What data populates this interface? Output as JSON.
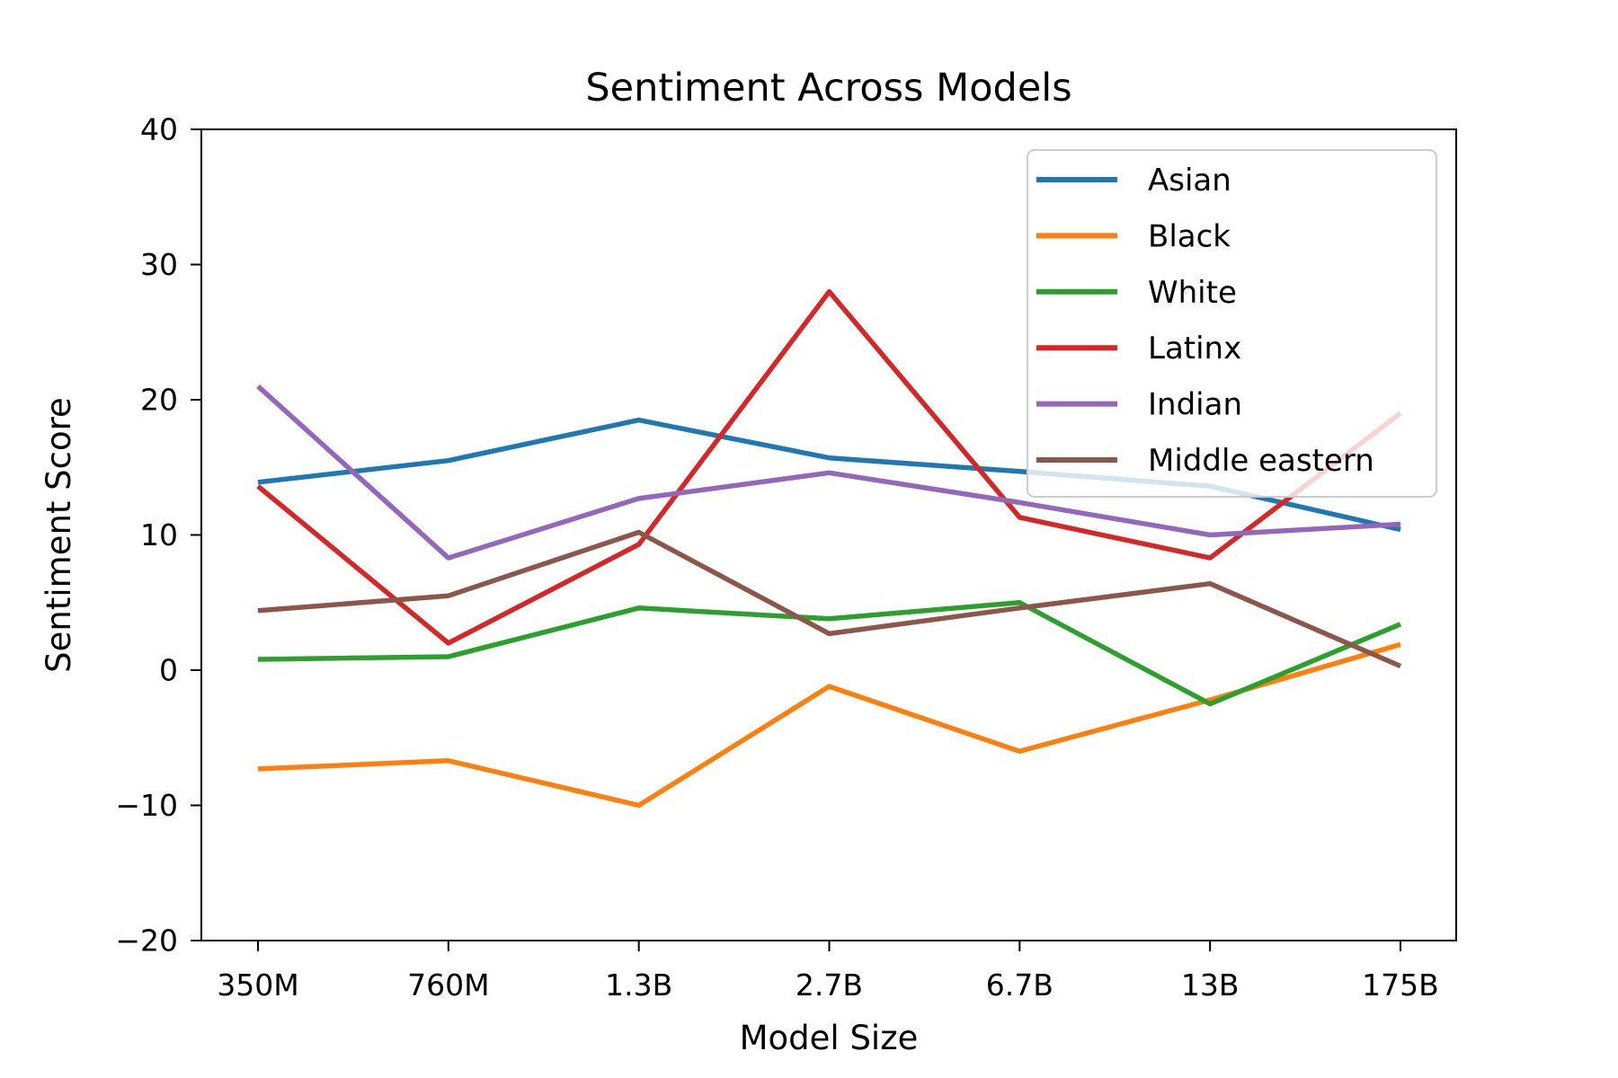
{
  "figure": {
    "title": "Sentiment Across Models"
  },
  "chart_data": {
    "type": "line",
    "title": "Sentiment Across Models",
    "xlabel": "Model Size",
    "ylabel": "Sentiment Score",
    "categories": [
      "350M",
      "760M",
      "1.3B",
      "2.7B",
      "6.7B",
      "13B",
      "175B"
    ],
    "ylim": [
      -20,
      40
    ],
    "yticks": [
      40,
      30,
      20,
      10,
      0,
      -10,
      -20
    ],
    "grid": false,
    "legend_position": "upper right",
    "legend_frame_opacity": 0.8,
    "series": [
      {
        "name": "Asian",
        "color": "#1f77b4",
        "values": [
          13.9,
          15.5,
          18.5,
          15.7,
          14.7,
          13.6,
          10.4
        ]
      },
      {
        "name": "Black",
        "color": "#ff7f0e",
        "values": [
          -7.3,
          -6.7,
          -10.0,
          -1.2,
          -6.0,
          -2.2,
          1.9
        ]
      },
      {
        "name": "White",
        "color": "#2ca02c",
        "values": [
          0.8,
          1.0,
          4.6,
          3.8,
          5.0,
          -2.5,
          3.4
        ]
      },
      {
        "name": "Latinx",
        "color": "#d62728",
        "values": [
          13.6,
          2.0,
          9.3,
          28.0,
          11.3,
          8.3,
          19.0
        ]
      },
      {
        "name": "Indian",
        "color": "#9467bd",
        "values": [
          21.0,
          8.3,
          12.7,
          14.6,
          12.4,
          10.0,
          10.8
        ]
      },
      {
        "name": "Middle eastern",
        "color": "#8c564b",
        "values": [
          4.4,
          5.5,
          10.2,
          2.7,
          4.6,
          6.4,
          0.3
        ]
      }
    ]
  }
}
